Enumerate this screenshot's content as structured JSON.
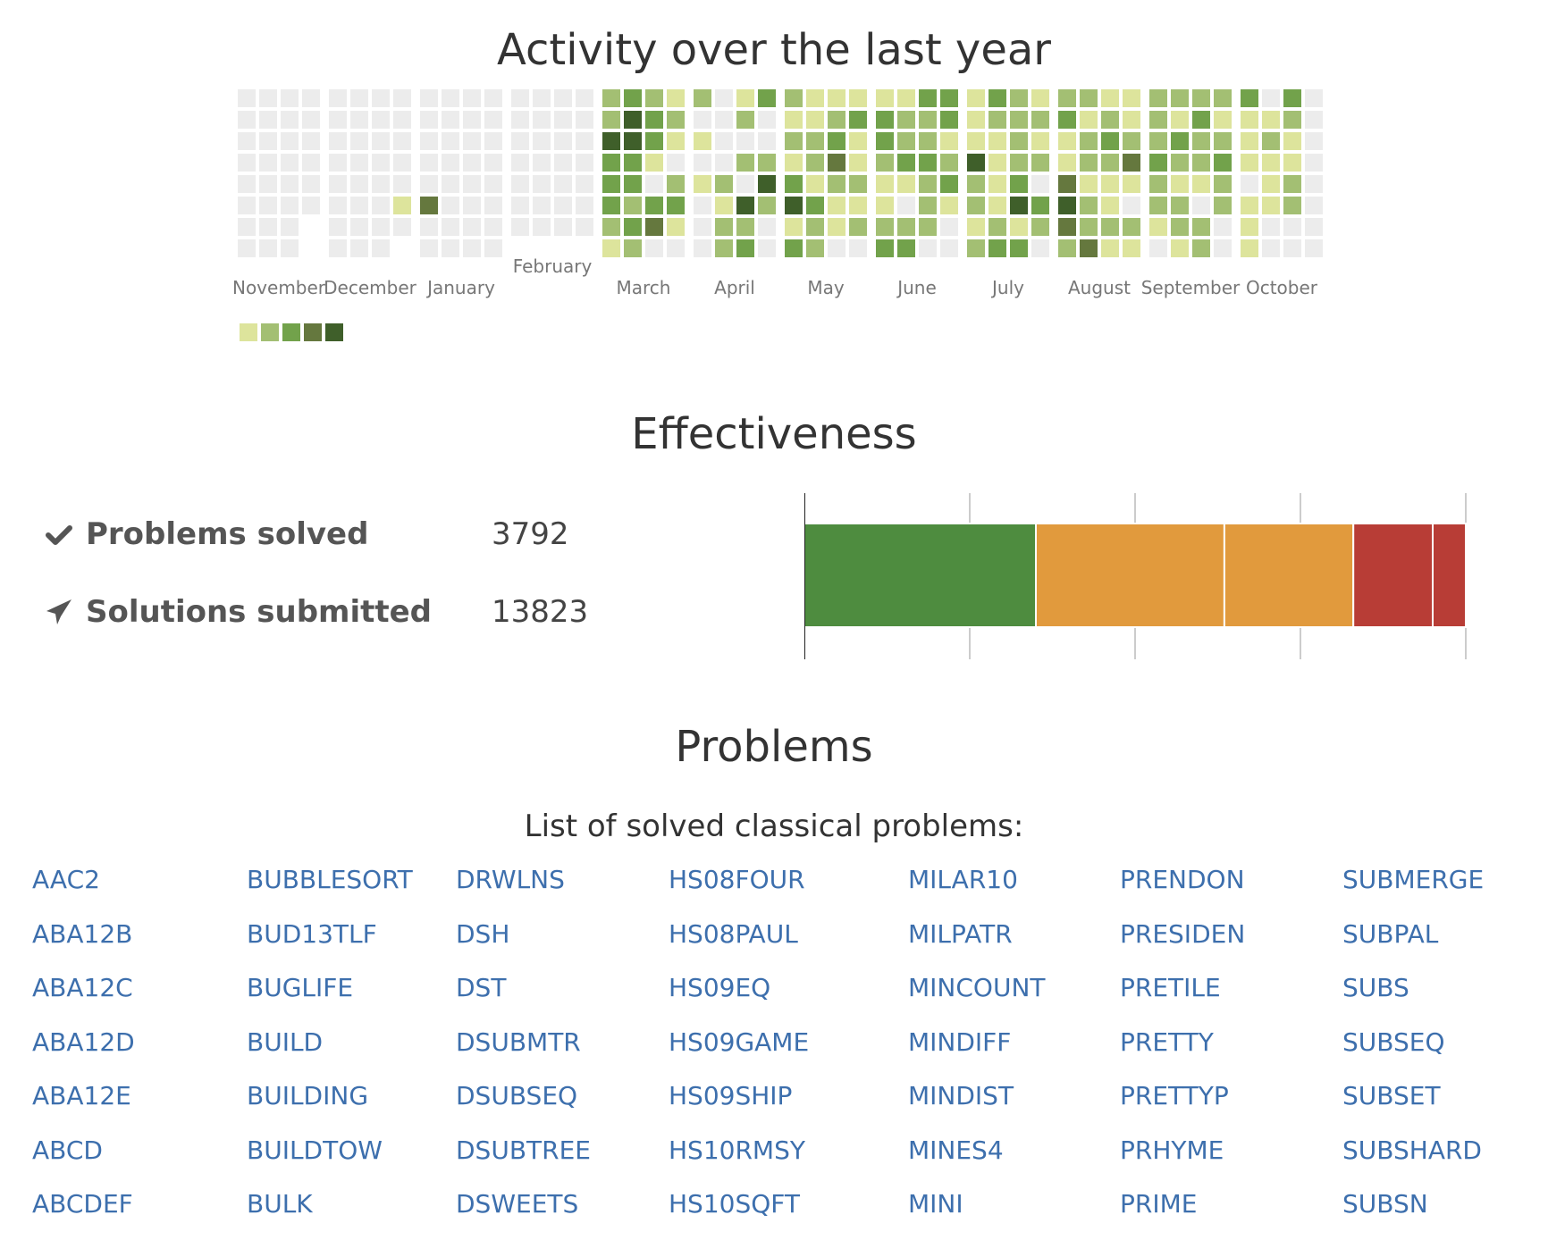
{
  "sections": {
    "activity_title": "Activity over the last year",
    "effectiveness_title": "Effectiveness",
    "problems_title": "Problems",
    "problems_subtitle": "List of solved classical problems:"
  },
  "activity": {
    "months": [
      "November",
      "December",
      "January",
      "February",
      "March",
      "April",
      "May",
      "June",
      "July",
      "August",
      "September",
      "October"
    ],
    "palette": [
      "#ececec",
      "#dde49c",
      "#a3bf73",
      "#72a24b",
      "#65783e",
      "#3f5f2a"
    ],
    "legend_levels": [
      1,
      2,
      3,
      4,
      5
    ],
    "weeks": [
      [
        0,
        0,
        0,
        0,
        0,
        0,
        0,
        0
      ],
      [
        0,
        0,
        0,
        0,
        0,
        0,
        0,
        0
      ],
      [
        0,
        0,
        0,
        0,
        0,
        0,
        0,
        0
      ],
      [
        0,
        0,
        0,
        0,
        0,
        0,
        -1,
        -1
      ],
      [
        0,
        0,
        0,
        0,
        0,
        0,
        0,
        0
      ],
      [
        0,
        0,
        0,
        0,
        0,
        0,
        0,
        0
      ],
      [
        0,
        0,
        0,
        0,
        0,
        0,
        0,
        0
      ],
      [
        0,
        0,
        0,
        0,
        0,
        1,
        0,
        -1
      ],
      [
        0,
        0,
        0,
        0,
        0,
        4,
        0,
        0
      ],
      [
        0,
        0,
        0,
        0,
        0,
        0,
        0,
        0
      ],
      [
        0,
        0,
        0,
        0,
        0,
        0,
        0,
        0
      ],
      [
        0,
        0,
        0,
        0,
        0,
        0,
        0,
        0
      ],
      [
        0,
        0,
        0,
        0,
        0,
        0,
        0,
        -1
      ],
      [
        0,
        0,
        0,
        0,
        0,
        0,
        0,
        -1
      ],
      [
        0,
        0,
        0,
        0,
        0,
        0,
        0,
        -1
      ],
      [
        0,
        0,
        0,
        0,
        0,
        0,
        0,
        -1
      ],
      [
        2,
        2,
        5,
        3,
        3,
        3,
        2,
        1
      ],
      [
        3,
        5,
        5,
        3,
        3,
        2,
        3,
        2
      ],
      [
        2,
        3,
        3,
        1,
        0,
        3,
        4,
        0
      ],
      [
        1,
        2,
        1,
        0,
        2,
        3,
        1,
        0
      ],
      [
        2,
        0,
        1,
        0,
        1,
        0,
        0,
        0
      ],
      [
        0,
        0,
        0,
        0,
        2,
        1,
        2,
        2
      ],
      [
        1,
        2,
        0,
        2,
        0,
        5,
        2,
        3
      ],
      [
        3,
        0,
        0,
        2,
        5,
        2,
        0,
        0
      ],
      [
        2,
        1,
        2,
        1,
        3,
        5,
        1,
        3
      ],
      [
        1,
        1,
        2,
        2,
        1,
        3,
        2,
        2
      ],
      [
        1,
        2,
        3,
        4,
        2,
        1,
        1,
        0
      ],
      [
        1,
        3,
        1,
        1,
        2,
        1,
        2,
        0
      ],
      [
        1,
        3,
        3,
        2,
        1,
        1,
        2,
        3
      ],
      [
        1,
        2,
        2,
        3,
        1,
        0,
        2,
        3
      ],
      [
        3,
        2,
        2,
        3,
        2,
        2,
        2,
        0
      ],
      [
        3,
        3,
        1,
        2,
        3,
        1,
        0,
        0
      ],
      [
        1,
        1,
        1,
        5,
        2,
        2,
        1,
        2
      ],
      [
        3,
        2,
        1,
        1,
        1,
        1,
        2,
        3
      ],
      [
        2,
        2,
        2,
        2,
        3,
        5,
        1,
        3
      ],
      [
        1,
        2,
        1,
        2,
        0,
        3,
        2,
        0
      ],
      [
        2,
        3,
        1,
        1,
        4,
        5,
        4,
        2
      ],
      [
        2,
        1,
        2,
        2,
        1,
        2,
        2,
        4
      ],
      [
        1,
        2,
        3,
        2,
        1,
        1,
        2,
        1
      ],
      [
        1,
        1,
        2,
        4,
        1,
        0,
        2,
        1
      ],
      [
        2,
        2,
        2,
        3,
        2,
        2,
        1,
        0
      ],
      [
        2,
        1,
        3,
        2,
        1,
        2,
        2,
        1
      ],
      [
        2,
        3,
        2,
        2,
        1,
        0,
        2,
        2
      ],
      [
        2,
        1,
        2,
        3,
        2,
        2,
        0,
        0
      ],
      [
        3,
        1,
        1,
        1,
        0,
        1,
        1,
        1
      ],
      [
        0,
        1,
        2,
        1,
        1,
        1,
        0,
        0
      ],
      [
        3,
        2,
        1,
        1,
        2,
        2,
        0,
        0
      ],
      [
        0,
        0,
        0,
        0,
        0,
        0,
        0,
        0
      ]
    ]
  },
  "effectiveness": {
    "solved_label": "Problems solved",
    "solved_value": "3792",
    "submitted_label": "Solutions submitted",
    "submitted_value": "13823"
  },
  "chart_data": {
    "type": "bar",
    "orientation": "horizontal-stacked",
    "segments": [
      {
        "value": 0.35,
        "color": "#4e8c3f"
      },
      {
        "value": 0.285,
        "color": "#e19a3d"
      },
      {
        "value": 0.195,
        "color": "#e19a3d"
      },
      {
        "value": 0.12,
        "color": "#b83d36"
      },
      {
        "value": 0.05,
        "color": "#b83d36"
      }
    ],
    "xlim": [
      0,
      1
    ],
    "grid": true,
    "gridlines": 4
  },
  "problems": {
    "columns": [
      [
        "AAC2",
        "ABA12B",
        "ABA12C",
        "ABA12D",
        "ABA12E",
        "ABCD",
        "ABCDEF"
      ],
      [
        "BUBBLESORT",
        "BUD13TLF",
        "BUGLIFE",
        "BUILD",
        "BUILDING",
        "BUILDTOW",
        "BULK"
      ],
      [
        "DRWLNS",
        "DSH",
        "DST",
        "DSUBMTR",
        "DSUBSEQ",
        "DSUBTREE",
        "DSWEETS"
      ],
      [
        "HS08FOUR",
        "HS08PAUL",
        "HS09EQ",
        "HS09GAME",
        "HS09SHIP",
        "HS10RMSY",
        "HS10SQFT"
      ],
      [
        "MILAR10",
        "MILPATR",
        "MINCOUNT",
        "MINDIFF",
        "MINDIST",
        "MINES4",
        "MINI"
      ],
      [
        "PRENDON",
        "PRESIDEN",
        "PRETILE",
        "PRETTY",
        "PRETTYP",
        "PRHYME",
        "PRIME"
      ],
      [
        "SUBMERGE",
        "SUBPAL",
        "SUBS",
        "SUBSEQ",
        "SUBSET",
        "SUBSHARD",
        "SUBSN"
      ]
    ]
  }
}
